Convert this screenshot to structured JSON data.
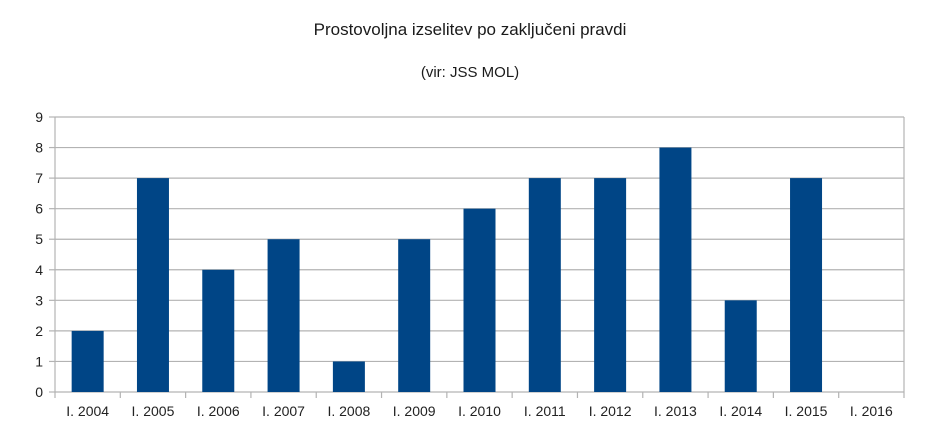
{
  "chart_data": {
    "type": "bar",
    "title": "Prostovoljna izselitev po zaključeni pravdi",
    "subtitle": "(vir: JSS MOL)",
    "xlabel": "",
    "ylabel": "",
    "categories": [
      "I. 2004",
      "I. 2005",
      "I. 2006",
      "I. 2007",
      "I. 2008",
      "I. 2009",
      "I. 2010",
      "I. 2011",
      "I. 2012",
      "I. 2013",
      "I. 2014",
      "I. 2015",
      "I. 2016"
    ],
    "values": [
      2,
      7,
      4,
      5,
      1,
      5,
      6,
      7,
      7,
      8,
      3,
      7,
      0
    ],
    "ylim": [
      0,
      9
    ],
    "yticks": [
      0,
      1,
      2,
      3,
      4,
      5,
      6,
      7,
      8,
      9
    ],
    "grid": true,
    "legend": null,
    "colors": {
      "bar": "#004586",
      "grid": "#b3b3b3",
      "axis": "#b3b3b3"
    }
  }
}
